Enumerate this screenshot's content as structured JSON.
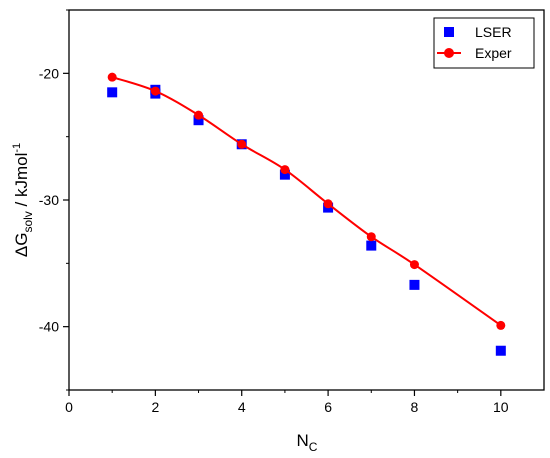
{
  "chart_data": {
    "type": "scatter",
    "title": "",
    "xlabel": {
      "base": "N",
      "sub": "C"
    },
    "ylabel": {
      "delta": "ΔG",
      "sub": "solv",
      "mid": " / kJmol",
      "sup": "-1"
    },
    "xlim": [
      0,
      11
    ],
    "ylim": [
      -45,
      -15
    ],
    "xticks": [
      0,
      2,
      4,
      6,
      8,
      10
    ],
    "yticks": [
      -20,
      -30,
      -40
    ],
    "grid": false,
    "legend_position": "top-right",
    "series": [
      {
        "name": "LSER",
        "marker": "square",
        "color": "#0000ff",
        "line": false,
        "x": [
          1,
          2,
          2,
          3,
          4,
          5,
          6,
          7,
          8,
          10
        ],
        "y": [
          -21.5,
          -21.3,
          -21.6,
          -23.7,
          -25.6,
          -28.0,
          -30.6,
          -33.6,
          -36.7,
          -41.9
        ]
      },
      {
        "name": "Exper",
        "marker": "circle",
        "color": "#ff0000",
        "line": true,
        "x": [
          1,
          2,
          3,
          4,
          5,
          6,
          7,
          8,
          10
        ],
        "y": [
          -20.3,
          -21.4,
          -23.3,
          -25.6,
          -27.6,
          -30.3,
          -32.9,
          -35.1,
          -39.9
        ]
      }
    ]
  }
}
